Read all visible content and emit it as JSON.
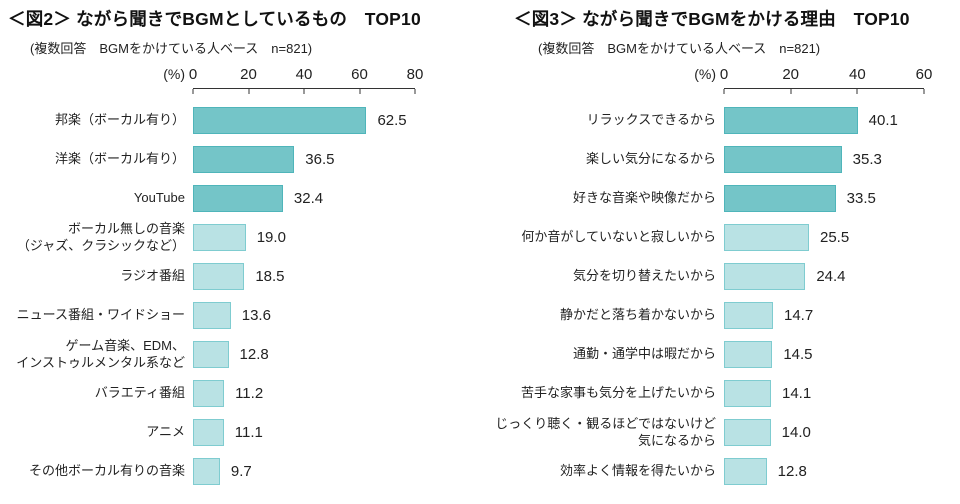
{
  "page": {
    "background": "#ffffff"
  },
  "chart_data": [
    {
      "type": "bar",
      "orientation": "horizontal",
      "title": "＜図2＞ ながら聞きでBGMとしているもの　TOP10",
      "subtitle": "(複数回答　BGMをかけている人ベース　n=821)",
      "unit_label": "(%)",
      "xlim": [
        0,
        80
      ],
      "x_ticks": [
        0,
        20,
        40,
        60,
        80
      ],
      "grid": false,
      "legend": "none",
      "highlight_top_n": 3,
      "colors": {
        "highlight_fill": "#74c5c8",
        "highlight_border": "#4fb5ba",
        "bar_fill": "#b9e2e4",
        "bar_border": "#7fccd0"
      },
      "categories": [
        "邦楽（ボーカル有り）",
        "洋楽（ボーカル有り）",
        "YouTube",
        "ボーカル無しの音楽\n（ジャズ、クラシックなど）",
        "ラジオ番組",
        "ニュース番組・ワイドショー",
        "ゲーム音楽、EDM、\nインストゥルメンタル系など",
        "バラエティ番組",
        "アニメ",
        "その他ボーカル有りの音楽"
      ],
      "values": [
        62.5,
        36.5,
        32.4,
        19.0,
        18.5,
        13.6,
        12.8,
        11.2,
        11.1,
        9.7
      ]
    },
    {
      "type": "bar",
      "orientation": "horizontal",
      "title": "＜図3＞ ながら聞きでBGMをかける理由　TOP10",
      "subtitle": "(複数回答　BGMをかけている人ベース　n=821)",
      "unit_label": "(%)",
      "xlim": [
        0,
        60
      ],
      "x_ticks": [
        0,
        20,
        40,
        60
      ],
      "grid": false,
      "legend": "none",
      "highlight_top_n": 3,
      "colors": {
        "highlight_fill": "#74c5c8",
        "highlight_border": "#4fb5ba",
        "bar_fill": "#b9e2e4",
        "bar_border": "#7fccd0"
      },
      "categories": [
        "リラックスできるから",
        "楽しい気分になるから",
        "好きな音楽や映像だから",
        "何か音がしていないと寂しいから",
        "気分を切り替えたいから",
        "静かだと落ち着かないから",
        "通勤・通学中は暇だから",
        "苦手な家事も気分を上げたいから",
        "じっくり聴く・観るほどではないけど\n気になるから",
        "効率よく情報を得たいから"
      ],
      "values": [
        40.1,
        35.3,
        33.5,
        25.5,
        24.4,
        14.7,
        14.5,
        14.1,
        14.0,
        12.8
      ]
    }
  ]
}
